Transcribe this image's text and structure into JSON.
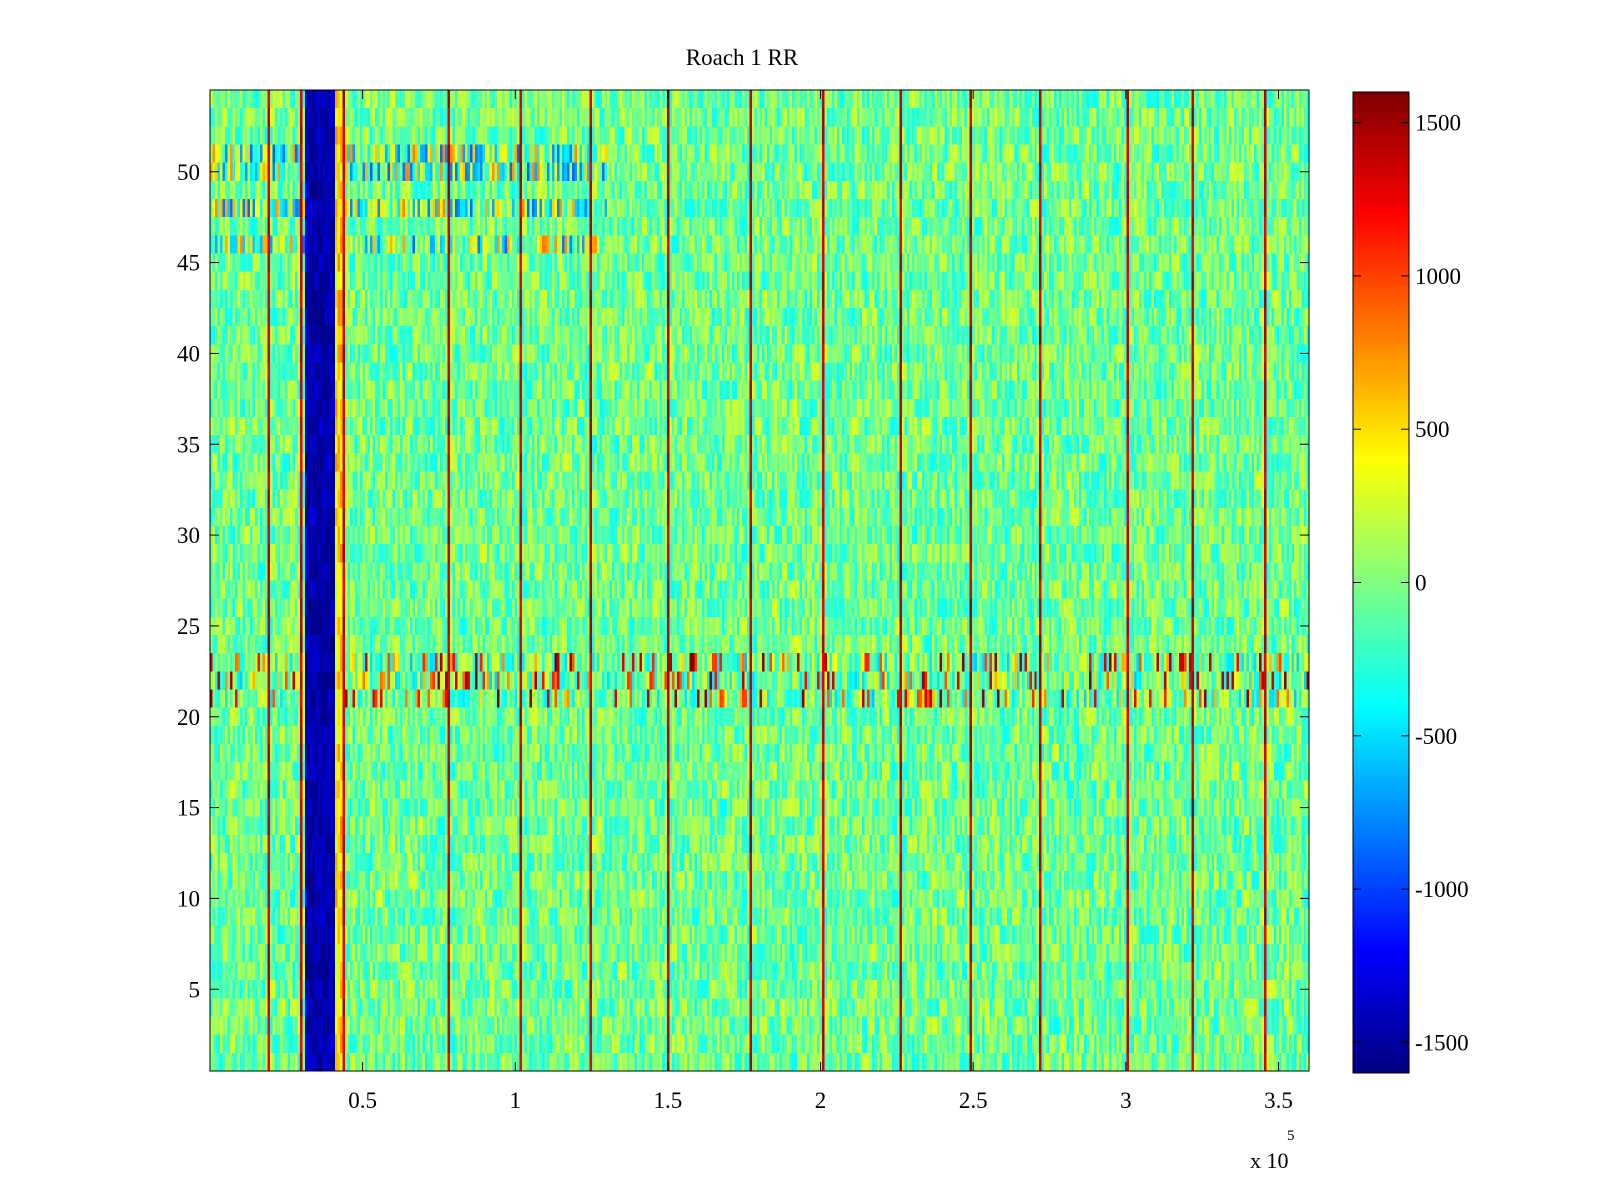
{
  "chart_data": {
    "type": "heatmap",
    "title": "Roach 1 RR",
    "xlabel": "",
    "ylabel": "",
    "x_multiplier_label": "x 10",
    "x_multiplier_exponent": "5",
    "xlim": [
      0,
      360000
    ],
    "ylim": [
      0.5,
      54.5
    ],
    "x_ticks": [
      0.5,
      1,
      1.5,
      2,
      2.5,
      3,
      3.5
    ],
    "x_tick_labels": [
      "0.5",
      "1",
      "1.5",
      "2",
      "2.5",
      "3",
      "3.5"
    ],
    "y_ticks": [
      5,
      10,
      15,
      20,
      25,
      30,
      35,
      40,
      45,
      50
    ],
    "y_tick_labels": [
      "5",
      "10",
      "15",
      "20",
      "25",
      "30",
      "35",
      "40",
      "45",
      "50"
    ],
    "rows": 54,
    "colormap": "jet",
    "clim": [
      -1600,
      1600
    ],
    "colorbar_ticks": [
      1500,
      1000,
      500,
      0,
      -500,
      -1000,
      -1500
    ],
    "colorbar_tick_labels": [
      "1500",
      "1000",
      "500",
      "0",
      "-500",
      "-1000",
      "-1500"
    ],
    "features": {
      "background_value_range": [
        -400,
        300
      ],
      "low_band": {
        "x_range": [
          31000,
          41000
        ],
        "value": -1600
      },
      "low_band_edge_value": 800,
      "spike_x": [
        19000,
        30000,
        44000,
        78000,
        102000,
        125000,
        150000,
        177000,
        201000,
        226000,
        249000,
        272000,
        301000,
        322000,
        346000
      ],
      "spike_value": 1500,
      "noisy_rows": [
        21,
        22,
        23
      ],
      "noisy_row_value_range": [
        -600,
        1600
      ],
      "noisy_rows_upper": [
        46,
        48,
        50,
        51
      ],
      "noisy_rows_upper_value_range": [
        -900,
        800
      ]
    }
  }
}
